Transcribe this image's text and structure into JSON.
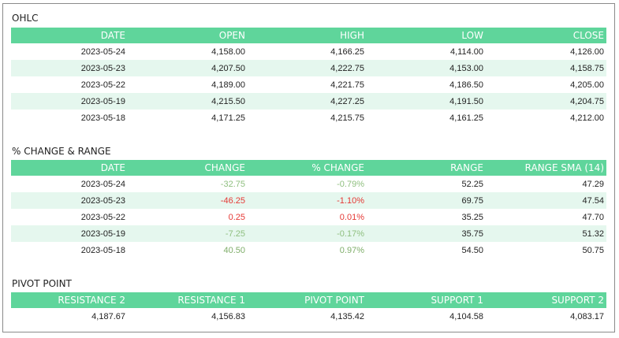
{
  "ohlc": {
    "title": "OHLC",
    "headers": [
      "DATE",
      "OPEN",
      "HIGH",
      "LOW",
      "CLOSE"
    ],
    "rows": [
      [
        "2023-05-24",
        "4,158.00",
        "4,166.25",
        "4,114.00",
        "4,126.00"
      ],
      [
        "2023-05-23",
        "4,207.50",
        "4,222.75",
        "4,153.00",
        "4,158.75"
      ],
      [
        "2023-05-22",
        "4,189.00",
        "4,221.75",
        "4,186.50",
        "4,205.00"
      ],
      [
        "2023-05-19",
        "4,215.50",
        "4,227.25",
        "4,191.50",
        "4,204.75"
      ],
      [
        "2023-05-18",
        "4,171.25",
        "4,215.75",
        "4,161.25",
        "4,212.00"
      ]
    ]
  },
  "change": {
    "title": "% CHANGE & RANGE",
    "headers": [
      "DATE",
      "CHANGE",
      "% CHANGE",
      "RANGE",
      "RANGE SMA (14)"
    ],
    "rows": [
      [
        "2023-05-24",
        "-32.75",
        "-0.79%",
        "52.25",
        "47.29"
      ],
      [
        "2023-05-23",
        "-46.25",
        "-1.10%",
        "69.75",
        "47.54"
      ],
      [
        "2023-05-22",
        "0.25",
        "0.01%",
        "35.25",
        "47.70"
      ],
      [
        "2023-05-19",
        "-7.25",
        "-0.17%",
        "35.75",
        "51.32"
      ],
      [
        "2023-05-18",
        "40.50",
        "0.97%",
        "54.50",
        "50.75"
      ]
    ],
    "row_colors": [
      "#8fbf7f",
      "#e53935",
      "#e53935",
      "#8fbf7f",
      "#7fae6a"
    ]
  },
  "pivot": {
    "title": "PIVOT POINT",
    "headers": [
      "RESISTANCE 2",
      "RESISTANCE 1",
      "PIVOT POINT",
      "SUPPORT 1",
      "SUPPORT 2"
    ],
    "values": [
      "4,187.67",
      "4,156.83",
      "4,135.42",
      "4,104.58",
      "4,083.17"
    ]
  },
  "colors": {
    "header_bg": "#5fd59b",
    "stripe_bg": "#e5f7ee",
    "negative": "#e53935",
    "positive": "#7fae6a"
  }
}
